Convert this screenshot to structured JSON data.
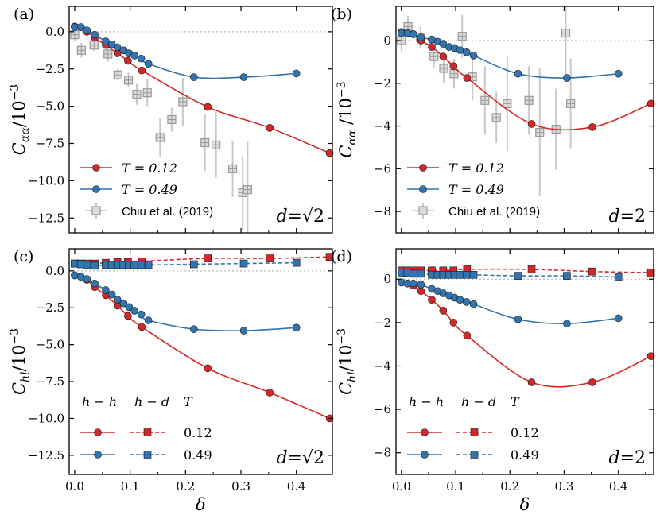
{
  "colors": {
    "red": "#d62728",
    "blue": "#3274b0",
    "grey": "#999999",
    "ref": "#c8c8c8"
  },
  "shared": {
    "xlabel": "δ",
    "xticks": [
      "0.0",
      "0.1",
      "0.2",
      "0.3",
      "0.4"
    ]
  },
  "chart_data": [
    {
      "panel": "(a)",
      "type": "line",
      "ylabel_main": "C",
      "ylabel_sub": "αα",
      "ylabel_tail": "/10",
      "ylabel_exp": "−3",
      "xlim": [
        -0.01,
        0.465
      ],
      "ylim": [
        -13.5,
        1.7
      ],
      "yticks": [
        0,
        -2.5,
        -5,
        -7.5,
        -10,
        -12.5
      ],
      "ytick_labels": [
        "0.0",
        "−2.5",
        "−5.0",
        "−7.5",
        "−10.0",
        "−12.5"
      ],
      "annotation": {
        "pre": "d",
        "eq": "=",
        "root": "√2"
      },
      "legend": {
        "entries": [
          "T = 0.12",
          "T = 0.49",
          "Chiu et al. (2019)"
        ]
      },
      "series": [
        {
          "name": "T = 0.12",
          "color": "red",
          "style": "solid",
          "marker": "circle",
          "x": [
            0,
            0.011,
            0.022,
            0.036,
            0.056,
            0.077,
            0.096,
            0.121,
            0.24,
            0.352,
            0.46
          ],
          "y": [
            0.35,
            0.3,
            0.0,
            -0.4,
            -0.9,
            -1.45,
            -1.95,
            -2.6,
            -5.05,
            -6.45,
            -8.15
          ]
        },
        {
          "name": "T = 0.49",
          "color": "blue",
          "style": "solid",
          "marker": "circle",
          "x": [
            0,
            0.011,
            0.022,
            0.036,
            0.056,
            0.067,
            0.077,
            0.088,
            0.098,
            0.108,
            0.12,
            0.133,
            0.215,
            0.305,
            0.4
          ],
          "y": [
            0.3,
            0.32,
            0.1,
            -0.2,
            -0.65,
            -0.85,
            -1.05,
            -1.25,
            -1.45,
            -1.6,
            -1.8,
            -2.15,
            -3.05,
            -3.05,
            -2.8
          ]
        }
      ],
      "reference": {
        "name": "Chiu et al. (2019)",
        "x": [
          0.0,
          0.012,
          0.035,
          0.06,
          0.078,
          0.097,
          0.112,
          0.131,
          0.154,
          0.175,
          0.195,
          0.235,
          0.255,
          0.285,
          0.303,
          0.312
        ],
        "y": [
          -0.2,
          -1.25,
          -0.9,
          -1.5,
          -2.9,
          -3.25,
          -4.2,
          -4.1,
          -7.1,
          -5.9,
          -4.7,
          -7.45,
          -7.6,
          -9.2,
          -10.8,
          -10.6
        ],
        "err": [
          0.4,
          0.5,
          0.4,
          0.5,
          0.4,
          0.5,
          0.7,
          0.9,
          1.3,
          0.8,
          1.6,
          1.9,
          2.2,
          1.9,
          2.5,
          3.2
        ]
      }
    },
    {
      "panel": "(b)",
      "type": "line",
      "ylabel_main": "C",
      "ylabel_sub": "αα",
      "ylabel_tail": " /10",
      "ylabel_exp": "−3",
      "xlim": [
        -0.01,
        0.465
      ],
      "ylim": [
        -9,
        1.6
      ],
      "yticks": [
        0,
        -2,
        -4,
        -6,
        -8
      ],
      "ytick_labels": [
        "0",
        "−2",
        "−4",
        "−6",
        "−8"
      ],
      "annotation": {
        "pre": "d",
        "eq": "=",
        "root": "2"
      },
      "legend": {
        "entries": [
          "T = 0.12",
          "T = 0.49",
          "Chiu et al. (2019)"
        ]
      },
      "series": [
        {
          "name": "T = 0.12",
          "color": "red",
          "style": "solid",
          "marker": "circle",
          "x": [
            0,
            0.011,
            0.022,
            0.036,
            0.056,
            0.077,
            0.096,
            0.121,
            0.24,
            0.352,
            0.46
          ],
          "y": [
            0.4,
            0.35,
            0.3,
            0.0,
            -0.3,
            -0.75,
            -1.2,
            -1.75,
            -3.9,
            -4.05,
            -2.95
          ]
        },
        {
          "name": "T = 0.49",
          "color": "blue",
          "style": "solid",
          "marker": "circle",
          "x": [
            0,
            0.011,
            0.022,
            0.036,
            0.056,
            0.067,
            0.077,
            0.088,
            0.098,
            0.108,
            0.12,
            0.133,
            0.215,
            0.305,
            0.4
          ],
          "y": [
            0.35,
            0.35,
            0.3,
            0.15,
            0.05,
            -0.05,
            -0.15,
            -0.3,
            -0.35,
            -0.45,
            -0.55,
            -0.7,
            -1.55,
            -1.75,
            -1.55
          ]
        }
      ],
      "reference": {
        "name": "Chiu et al. (2019)",
        "x": [
          0.0,
          0.012,
          0.035,
          0.06,
          0.078,
          0.097,
          0.112,
          0.131,
          0.154,
          0.175,
          0.195,
          0.235,
          0.255,
          0.285,
          0.303,
          0.312
        ],
        "y": [
          0.0,
          0.65,
          0.15,
          -0.75,
          -1.3,
          -1.55,
          0.2,
          -1.7,
          -2.8,
          -3.6,
          -2.95,
          -2.8,
          -4.3,
          -4.15,
          0.35,
          -2.95
        ],
        "err": [
          0.5,
          0.5,
          0.5,
          0.5,
          0.7,
          0.7,
          1.0,
          1.1,
          1.6,
          1.2,
          2.2,
          1.6,
          3.0,
          1.9,
          2.2,
          2.1
        ]
      }
    },
    {
      "panel": "(c)",
      "type": "line",
      "ylabel_main": "C",
      "ylabel_sub": "hl",
      "ylabel_tail": "/10",
      "ylabel_exp": "−3",
      "xlim": [
        -0.01,
        0.465
      ],
      "ylim": [
        -13.8,
        1.5
      ],
      "yticks": [
        0,
        -2.5,
        -5,
        -7.5,
        -10,
        -12.5
      ],
      "ytick_labels": [
        "0.0",
        "−2.5",
        "−5.0",
        "−7.5",
        "−10.0",
        "−12.5"
      ],
      "annotation": {
        "pre": "d",
        "eq": "=",
        "root": "√2"
      },
      "legend": {
        "headers": [
          "h − h",
          "h − d",
          "T"
        ],
        "values": [
          "0.12",
          "0.49"
        ]
      },
      "series": [
        {
          "name": "h-h T=0.12",
          "color": "red",
          "style": "solid",
          "marker": "circle",
          "x": [
            0,
            0.011,
            0.022,
            0.036,
            0.056,
            0.077,
            0.096,
            0.121,
            0.24,
            0.352,
            0.46
          ],
          "y": [
            -0.3,
            -0.4,
            -0.6,
            -1.1,
            -1.65,
            -2.35,
            -3.05,
            -3.8,
            -6.6,
            -8.25,
            -10.0
          ]
        },
        {
          "name": "h-h T=0.49",
          "color": "blue",
          "style": "solid",
          "marker": "circle",
          "x": [
            0,
            0.011,
            0.022,
            0.036,
            0.056,
            0.067,
            0.077,
            0.088,
            0.098,
            0.108,
            0.12,
            0.133,
            0.215,
            0.305,
            0.4
          ],
          "y": [
            -0.3,
            -0.4,
            -0.55,
            -0.85,
            -1.3,
            -1.6,
            -1.95,
            -2.2,
            -2.45,
            -2.7,
            -2.95,
            -3.35,
            -3.95,
            -4.05,
            -3.85
          ]
        },
        {
          "name": "h-d T=0.12",
          "color": "red",
          "style": "dashed",
          "marker": "square",
          "x": [
            0,
            0.011,
            0.022,
            0.036,
            0.056,
            0.077,
            0.096,
            0.121,
            0.24,
            0.352,
            0.46
          ],
          "y": [
            0.5,
            0.5,
            0.5,
            0.5,
            0.55,
            0.6,
            0.6,
            0.65,
            0.85,
            0.85,
            0.95
          ]
        },
        {
          "name": "h-d T=0.49",
          "color": "blue",
          "style": "dashed",
          "marker": "square",
          "x": [
            0,
            0.011,
            0.022,
            0.036,
            0.056,
            0.067,
            0.077,
            0.088,
            0.098,
            0.108,
            0.12,
            0.133,
            0.215,
            0.305,
            0.4
          ],
          "y": [
            0.5,
            0.45,
            0.4,
            0.35,
            0.4,
            0.4,
            0.4,
            0.4,
            0.4,
            0.4,
            0.4,
            0.4,
            0.45,
            0.5,
            0.55
          ]
        }
      ]
    },
    {
      "panel": "(d)",
      "type": "line",
      "ylabel_main": "C",
      "ylabel_sub": "hl",
      "ylabel_tail": "/10",
      "ylabel_exp": "−3",
      "xlim": [
        -0.01,
        0.465
      ],
      "ylim": [
        -9,
        1.4
      ],
      "yticks": [
        0,
        -2,
        -4,
        -6,
        -8
      ],
      "ytick_labels": [
        "0",
        "−2",
        "−4",
        "−6",
        "−8"
      ],
      "annotation": {
        "pre": "d",
        "eq": "=",
        "root": "2"
      },
      "legend": {
        "headers": [
          "h − h",
          "h − d",
          "T"
        ],
        "values": [
          "0.12",
          "0.49"
        ]
      },
      "series": [
        {
          "name": "h-h T=0.12",
          "color": "red",
          "style": "solid",
          "marker": "circle",
          "x": [
            0,
            0.011,
            0.022,
            0.036,
            0.056,
            0.077,
            0.096,
            0.121,
            0.24,
            0.352,
            0.46
          ],
          "y": [
            -0.15,
            -0.2,
            -0.3,
            -0.55,
            -0.95,
            -1.45,
            -2.0,
            -2.6,
            -4.75,
            -4.75,
            -3.55
          ]
        },
        {
          "name": "h-h T=0.49",
          "color": "blue",
          "style": "solid",
          "marker": "circle",
          "x": [
            0,
            0.011,
            0.022,
            0.036,
            0.056,
            0.067,
            0.077,
            0.088,
            0.098,
            0.108,
            0.12,
            0.133,
            0.215,
            0.305,
            0.4
          ],
          "y": [
            -0.15,
            -0.2,
            -0.2,
            -0.25,
            -0.45,
            -0.55,
            -0.65,
            -0.75,
            -0.85,
            -0.95,
            -1.05,
            -1.15,
            -1.85,
            -2.05,
            -1.8
          ]
        },
        {
          "name": "h-d T=0.12",
          "color": "red",
          "style": "dashed",
          "marker": "square",
          "x": [
            0,
            0.011,
            0.022,
            0.036,
            0.056,
            0.077,
            0.096,
            0.121,
            0.24,
            0.352,
            0.46
          ],
          "y": [
            0.4,
            0.4,
            0.4,
            0.4,
            0.4,
            0.4,
            0.4,
            0.45,
            0.45,
            0.35,
            0.3
          ]
        },
        {
          "name": "h-d T=0.49",
          "color": "blue",
          "style": "dashed",
          "marker": "square",
          "x": [
            0,
            0.011,
            0.022,
            0.036,
            0.056,
            0.067,
            0.077,
            0.088,
            0.098,
            0.108,
            0.12,
            0.133,
            0.215,
            0.305,
            0.4
          ],
          "y": [
            0.3,
            0.3,
            0.25,
            0.25,
            0.2,
            0.2,
            0.2,
            0.2,
            0.2,
            0.2,
            0.2,
            0.2,
            0.15,
            0.15,
            0.1
          ]
        }
      ]
    }
  ]
}
